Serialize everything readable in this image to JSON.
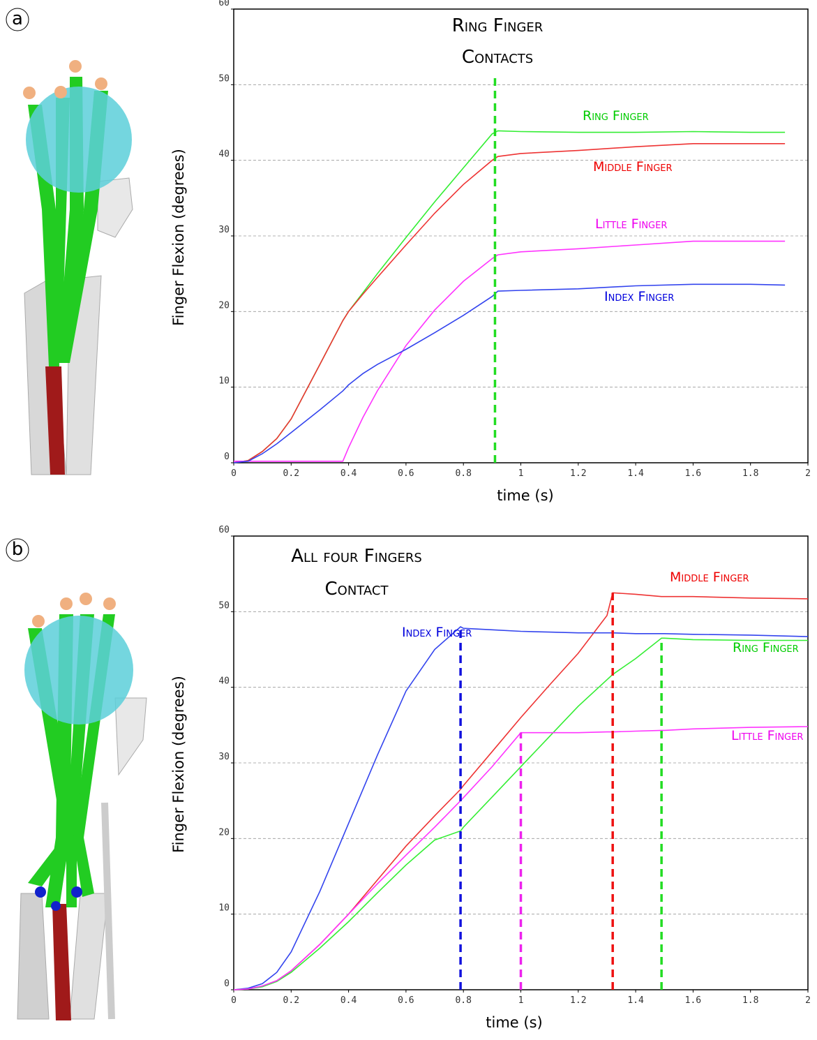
{
  "chart_data": [
    {
      "type": "line",
      "panel": "a",
      "annotation": [
        "Ring Finger",
        "Contacts"
      ],
      "x_label": "time (s)",
      "y_label": "Finger Flexion (degrees)",
      "xlim": [
        0,
        2
      ],
      "ylim": [
        0,
        60
      ],
      "xticks": [
        0,
        0.2,
        0.4,
        0.6,
        0.8,
        1,
        1.2,
        1.4,
        1.6,
        1.8,
        2
      ],
      "yticks": [
        0,
        10,
        20,
        30,
        40,
        50,
        60
      ],
      "grid": true,
      "x": [
        0,
        0.05,
        0.1,
        0.15,
        0.2,
        0.3,
        0.38,
        0.4,
        0.45,
        0.5,
        0.6,
        0.7,
        0.8,
        0.9,
        0.92,
        1.0,
        1.2,
        1.4,
        1.6,
        1.8,
        1.92
      ],
      "series": [
        {
          "name": "Ring Finger",
          "color": "#33ee33",
          "label_color": "#00cc00",
          "values": [
            0,
            0.3,
            1.5,
            3.2,
            5.8,
            13,
            18.8,
            20,
            22.5,
            25,
            29.8,
            34.5,
            39,
            43.5,
            43.9,
            43.8,
            43.7,
            43.7,
            43.8,
            43.7,
            43.7
          ]
        },
        {
          "name": "Middle Finger",
          "color": "#ee3333",
          "label_color": "#ee0000",
          "values": [
            0,
            0.3,
            1.5,
            3.2,
            5.8,
            13,
            18.8,
            20,
            22.3,
            24.5,
            28.8,
            33,
            36.8,
            40,
            40.5,
            40.9,
            41.3,
            41.8,
            42.2,
            42.2,
            42.2
          ]
        },
        {
          "name": "Little Finger",
          "color": "#ff33ff",
          "label_color": "#ee00ee",
          "values": [
            0.2,
            0.2,
            0.2,
            0.2,
            0.2,
            0.2,
            0.2,
            2,
            6,
            9.5,
            15.5,
            20.2,
            24,
            27,
            27.5,
            27.9,
            28.3,
            28.8,
            29.3,
            29.3,
            29.3
          ]
        },
        {
          "name": "Index Finger",
          "color": "#3344ee",
          "label_color": "#0000dd",
          "values": [
            0,
            0.2,
            1.2,
            2.5,
            4,
            7,
            9.5,
            10.3,
            11.8,
            13,
            15,
            17.2,
            19.5,
            22,
            22.7,
            22.8,
            23,
            23.4,
            23.6,
            23.6,
            23.5
          ]
        }
      ],
      "contacts": [
        {
          "x": 0.91,
          "y": 51,
          "color": "#22dd22"
        }
      ]
    },
    {
      "type": "line",
      "panel": "b",
      "annotation": [
        "All four Fingers",
        "Contact"
      ],
      "x_label": "time (s)",
      "y_label": "Finger Flexion (degrees)",
      "xlim": [
        0,
        2
      ],
      "ylim": [
        0,
        60
      ],
      "xticks": [
        0,
        0.2,
        0.4,
        0.6,
        0.8,
        1,
        1.2,
        1.4,
        1.6,
        1.8,
        2
      ],
      "yticks": [
        0,
        10,
        20,
        30,
        40,
        50,
        60
      ],
      "grid": true,
      "x": [
        0,
        0.05,
        0.1,
        0.15,
        0.2,
        0.3,
        0.4,
        0.5,
        0.6,
        0.7,
        0.79,
        0.8,
        0.9,
        1.0,
        1.1,
        1.2,
        1.3,
        1.32,
        1.4,
        1.49,
        1.5,
        1.6,
        1.8,
        2.0
      ],
      "series": [
        {
          "name": "Middle Finger",
          "color": "#ee3333",
          "label_color": "#ee0000",
          "values": [
            0,
            0.1,
            0.5,
            1.2,
            2.5,
            6,
            10,
            14.5,
            19,
            23,
            26.5,
            27,
            31.5,
            36,
            40.3,
            44.5,
            49.5,
            52.5,
            52.3,
            52,
            52,
            52,
            51.8,
            51.7
          ]
        },
        {
          "name": "Index Finger",
          "color": "#3344ee",
          "label_color": "#0000dd",
          "values": [
            0,
            0.2,
            0.8,
            2.3,
            5,
            13,
            22,
            31,
            39.5,
            45,
            48,
            47.8,
            47.6,
            47.4,
            47.3,
            47.2,
            47.2,
            47.2,
            47.1,
            47.1,
            47.1,
            47,
            46.9,
            46.7
          ]
        },
        {
          "name": "Ring Finger",
          "color": "#33ee33",
          "label_color": "#00cc00",
          "values": [
            0,
            0.1,
            0.4,
            1.1,
            2.3,
            5.5,
            9,
            12.8,
            16.5,
            19.8,
            21,
            21.5,
            25.5,
            29.5,
            33.5,
            37.5,
            41,
            41.7,
            43.8,
            46.5,
            46.5,
            46.3,
            46.2,
            46.2
          ]
        },
        {
          "name": "Little Finger",
          "color": "#ff33ff",
          "label_color": "#ee00ee",
          "values": [
            0,
            0.1,
            0.5,
            1.2,
            2.5,
            6,
            10,
            14,
            17.8,
            21.5,
            25,
            25.4,
            29.5,
            34,
            34,
            34,
            34.1,
            34.1,
            34.2,
            34.3,
            34.3,
            34.5,
            34.7,
            34.8
          ]
        }
      ],
      "contacts": [
        {
          "x": 0.79,
          "y": 48,
          "color": "#1111dd"
        },
        {
          "x": 1.0,
          "y": 34,
          "color": "#ee22ee"
        },
        {
          "x": 1.32,
          "y": 52.5,
          "color": "#ee1111"
        },
        {
          "x": 1.49,
          "y": 46.5,
          "color": "#22dd22"
        }
      ]
    }
  ]
}
